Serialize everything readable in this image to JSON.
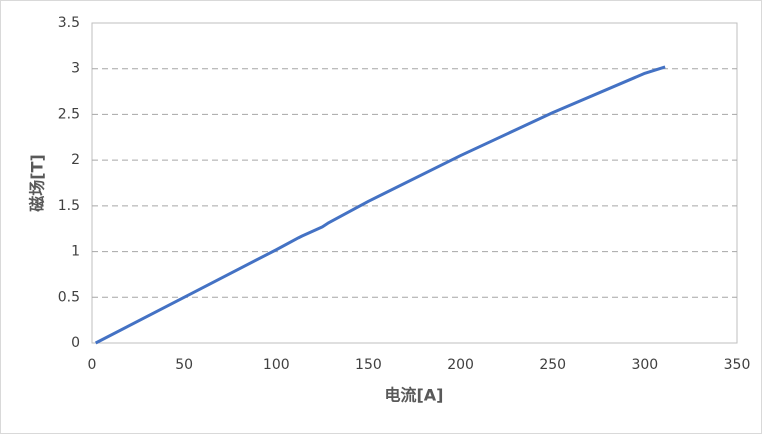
{
  "chart_data": {
    "type": "line",
    "x_label": "电流[A]",
    "y_label": "磁场[T]",
    "series": [
      {
        "color": "#4472c4",
        "x": [
          2,
          50,
          100,
          112,
          114,
          125,
          128,
          150,
          200,
          250,
          300,
          311
        ],
        "values": [
          0,
          0.5,
          1.02,
          1.15,
          1.17,
          1.27,
          1.31,
          1.55,
          2.05,
          2.52,
          2.95,
          3.02
        ]
      }
    ],
    "xlim": [
      0,
      350
    ],
    "xticks": [
      0,
      50,
      100,
      150,
      200,
      250,
      300,
      350
    ],
    "ylim": [
      0,
      3.5
    ],
    "yticks": [
      0,
      0.5,
      1,
      1.5,
      2,
      2.5,
      3,
      3.5
    ],
    "grid": true
  }
}
